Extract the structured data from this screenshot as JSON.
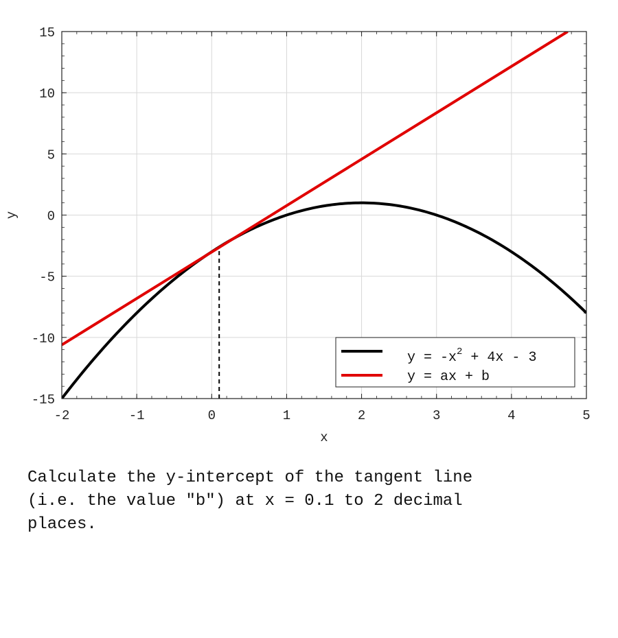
{
  "chart_data": {
    "type": "line",
    "xlabel": "x",
    "ylabel": "y",
    "xlim": [
      -2,
      5
    ],
    "ylim": [
      -15,
      15
    ],
    "x_ticks": [
      -2,
      -1,
      0,
      1,
      2,
      3,
      4,
      5
    ],
    "y_ticks": [
      -15,
      -10,
      -5,
      0,
      5,
      10,
      15
    ],
    "x_tick_labels": [
      "-2",
      "-1",
      "0",
      "1",
      "2",
      "3",
      "4",
      "5"
    ],
    "y_tick_labels": [
      "-15",
      "-10",
      "-5",
      "0",
      "5",
      "10",
      "15"
    ],
    "grid": true,
    "legend_position": "bottom-right",
    "series": [
      {
        "name": "y = -x2 + 4x - 3",
        "legend_main": "y = -x",
        "legend_sup": "2",
        "legend_tail": " + 4x - 3",
        "color": "#000000",
        "x": [
          -2,
          -1.5,
          -1,
          -0.5,
          0,
          0.1,
          0.5,
          1,
          1.5,
          2,
          2.5,
          3,
          3.5,
          4,
          4.5,
          5
        ],
        "y": [
          -15,
          -11.25,
          -8,
          -5.25,
          -3,
          -2.61,
          -1.25,
          0,
          0.75,
          1,
          0.75,
          0,
          -1.25,
          -3,
          -5.25,
          -8
        ]
      },
      {
        "name": "y = ax + b",
        "color": "#e00000",
        "x": [
          -2,
          4.75
        ],
        "y": [
          -10.61,
          15
        ]
      }
    ],
    "annotations": [
      {
        "type": "vertical-dashed-line",
        "x": 0.1,
        "y_from": -15,
        "y_to": -2.61,
        "color": "#000000"
      }
    ]
  },
  "question": {
    "line1": "Calculate the y-intercept of the tangent line",
    "line2": "(i.e. the value \"b\") at x = 0.1 to 2 decimal",
    "line3": "places."
  }
}
